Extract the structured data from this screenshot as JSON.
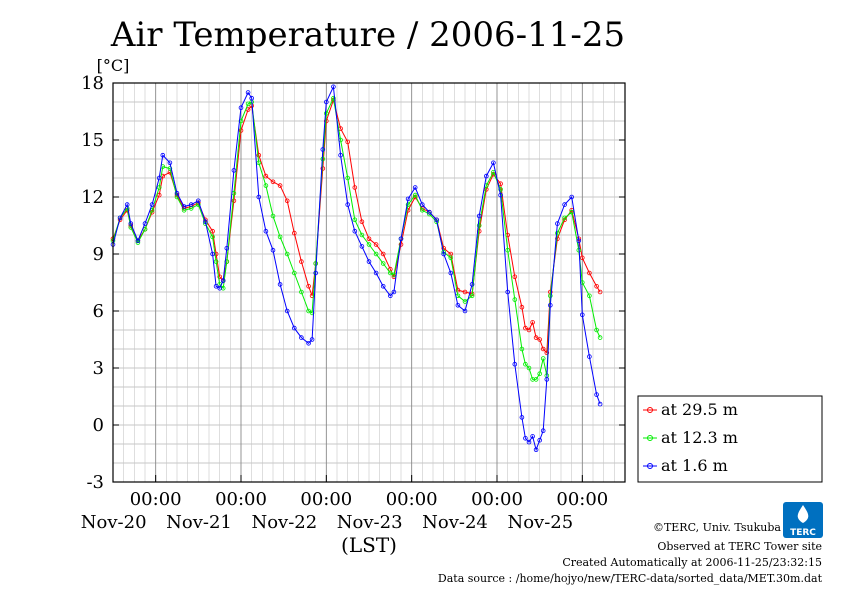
{
  "chart_data": {
    "type": "line",
    "title": "Air Temperature / 2006-11-25",
    "ylabel": "[°C]",
    "xlabel": "(LST)",
    "ylim": [
      -3,
      18
    ],
    "yticks": [
      "-3",
      "0",
      "3",
      "6",
      "9",
      "12",
      "15",
      "18"
    ],
    "xlim_hours": [
      -12,
      132
    ],
    "x_unit": "hours relative to 2006-11-20 00:00 LST",
    "xticks": [
      {
        "hour": 0,
        "time": "00:00",
        "date": "Nov-20"
      },
      {
        "hour": 24,
        "time": "00:00",
        "date": "Nov-21"
      },
      {
        "hour": 48,
        "time": "00:00",
        "date": "Nov-22"
      },
      {
        "hour": 72,
        "time": "00:00",
        "date": "Nov-23"
      },
      {
        "hour": 96,
        "time": "00:00",
        "date": "Nov-24"
      },
      {
        "hour": 120,
        "time": "00:00",
        "date": "Nov-25"
      }
    ],
    "grid": true,
    "legend_position": "right",
    "series": [
      {
        "name": "at 29.5 m",
        "color": "#ff0000",
        "points": [
          [
            -12,
            9.8
          ],
          [
            -10,
            10.8
          ],
          [
            -8,
            11.3
          ],
          [
            -7,
            10.5
          ],
          [
            -5,
            9.7
          ],
          [
            -3,
            10.3
          ],
          [
            -1,
            11.2
          ],
          [
            1,
            12.1
          ],
          [
            2,
            13.1
          ],
          [
            4,
            13.3
          ],
          [
            6,
            12.1
          ],
          [
            8,
            11.4
          ],
          [
            10,
            11.5
          ],
          [
            12,
            11.7
          ],
          [
            14,
            10.8
          ],
          [
            16,
            10.2
          ],
          [
            17,
            9.0
          ],
          [
            18,
            7.8
          ],
          [
            19,
            7.6
          ],
          [
            20,
            8.6
          ],
          [
            22,
            11.8
          ],
          [
            24,
            15.5
          ],
          [
            26,
            16.6
          ],
          [
            27,
            16.8
          ],
          [
            29,
            14.2
          ],
          [
            31,
            13.1
          ],
          [
            33,
            12.8
          ],
          [
            35,
            12.6
          ],
          [
            37,
            11.8
          ],
          [
            39,
            10.1
          ],
          [
            41,
            8.6
          ],
          [
            43,
            7.3
          ],
          [
            44,
            6.8
          ],
          [
            45,
            8.5
          ],
          [
            47,
            13.5
          ],
          [
            48,
            16.0
          ],
          [
            50,
            17.1
          ],
          [
            52,
            15.6
          ],
          [
            54,
            14.9
          ],
          [
            56,
            12.5
          ],
          [
            58,
            10.7
          ],
          [
            60,
            9.8
          ],
          [
            62,
            9.5
          ],
          [
            64,
            9.0
          ],
          [
            66,
            8.2
          ],
          [
            67,
            7.8
          ],
          [
            69,
            9.5
          ],
          [
            71,
            11.3
          ],
          [
            73,
            12.0
          ],
          [
            75,
            11.4
          ],
          [
            77,
            11.2
          ],
          [
            79,
            10.8
          ],
          [
            81,
            9.3
          ],
          [
            83,
            9.0
          ],
          [
            85,
            7.1
          ],
          [
            87,
            7.0
          ],
          [
            89,
            6.9
          ],
          [
            91,
            10.2
          ],
          [
            93,
            12.4
          ],
          [
            95,
            13.2
          ],
          [
            97,
            12.7
          ],
          [
            99,
            10.0
          ],
          [
            101,
            7.8
          ],
          [
            103,
            6.2
          ],
          [
            104,
            5.1
          ],
          [
            105,
            5.0
          ],
          [
            106,
            5.4
          ],
          [
            107,
            4.6
          ],
          [
            108,
            4.5
          ],
          [
            109,
            4.0
          ],
          [
            110,
            3.8
          ],
          [
            111,
            7.0
          ],
          [
            113,
            9.8
          ],
          [
            115,
            10.8
          ],
          [
            117,
            11.3
          ],
          [
            119,
            9.8
          ],
          [
            120,
            8.8
          ],
          [
            122,
            8.0
          ],
          [
            124,
            7.3
          ],
          [
            125,
            7.0
          ]
        ]
      },
      {
        "name": "at 12.3 m",
        "color": "#00ee00",
        "points": [
          [
            -12,
            9.7
          ],
          [
            -10,
            10.9
          ],
          [
            -8,
            11.4
          ],
          [
            -7,
            10.4
          ],
          [
            -5,
            9.6
          ],
          [
            -3,
            10.3
          ],
          [
            -1,
            11.3
          ],
          [
            1,
            12.5
          ],
          [
            2,
            13.6
          ],
          [
            4,
            13.5
          ],
          [
            6,
            12.0
          ],
          [
            8,
            11.3
          ],
          [
            10,
            11.4
          ],
          [
            12,
            11.6
          ],
          [
            14,
            10.6
          ],
          [
            16,
            9.9
          ],
          [
            17,
            8.6
          ],
          [
            18,
            7.4
          ],
          [
            19,
            7.2
          ],
          [
            20,
            8.6
          ],
          [
            22,
            12.2
          ],
          [
            24,
            16.0
          ],
          [
            26,
            16.9
          ],
          [
            27,
            17.0
          ],
          [
            29,
            13.8
          ],
          [
            31,
            12.6
          ],
          [
            33,
            11.0
          ],
          [
            35,
            9.9
          ],
          [
            37,
            9.0
          ],
          [
            39,
            8.0
          ],
          [
            41,
            7.0
          ],
          [
            43,
            6.0
          ],
          [
            44,
            5.9
          ],
          [
            45,
            8.5
          ],
          [
            47,
            14.0
          ],
          [
            48,
            16.4
          ],
          [
            50,
            17.2
          ],
          [
            52,
            15.0
          ],
          [
            54,
            13.0
          ],
          [
            56,
            10.8
          ],
          [
            58,
            10.0
          ],
          [
            60,
            9.5
          ],
          [
            62,
            9.0
          ],
          [
            64,
            8.5
          ],
          [
            66,
            8.0
          ],
          [
            67,
            7.9
          ],
          [
            69,
            9.8
          ],
          [
            71,
            11.6
          ],
          [
            73,
            12.1
          ],
          [
            75,
            11.3
          ],
          [
            77,
            11.1
          ],
          [
            79,
            10.7
          ],
          [
            81,
            9.1
          ],
          [
            83,
            8.8
          ],
          [
            85,
            6.8
          ],
          [
            87,
            6.5
          ],
          [
            89,
            6.8
          ],
          [
            91,
            10.5
          ],
          [
            93,
            12.6
          ],
          [
            95,
            13.3
          ],
          [
            97,
            12.4
          ],
          [
            99,
            9.2
          ],
          [
            101,
            6.6
          ],
          [
            103,
            4.0
          ],
          [
            104,
            3.2
          ],
          [
            105,
            3.0
          ],
          [
            106,
            2.4
          ],
          [
            107,
            2.4
          ],
          [
            108,
            2.7
          ],
          [
            109,
            3.5
          ],
          [
            110,
            2.6
          ],
          [
            111,
            6.8
          ],
          [
            113,
            10.1
          ],
          [
            115,
            10.9
          ],
          [
            117,
            11.2
          ],
          [
            119,
            9.2
          ],
          [
            120,
            7.5
          ],
          [
            122,
            6.8
          ],
          [
            124,
            5.0
          ],
          [
            125,
            4.6
          ]
        ]
      },
      {
        "name": "at 1.6 m",
        "color": "#0000ff",
        "points": [
          [
            -12,
            9.5
          ],
          [
            -10,
            10.9
          ],
          [
            -8,
            11.6
          ],
          [
            -7,
            10.6
          ],
          [
            -5,
            9.7
          ],
          [
            -3,
            10.6
          ],
          [
            -1,
            11.6
          ],
          [
            1,
            13.0
          ],
          [
            2,
            14.2
          ],
          [
            4,
            13.8
          ],
          [
            6,
            12.2
          ],
          [
            8,
            11.5
          ],
          [
            10,
            11.6
          ],
          [
            12,
            11.8
          ],
          [
            14,
            10.7
          ],
          [
            16,
            9.0
          ],
          [
            17,
            7.3
          ],
          [
            18,
            7.2
          ],
          [
            19,
            7.6
          ],
          [
            20,
            9.3
          ],
          [
            22,
            13.4
          ],
          [
            24,
            16.7
          ],
          [
            26,
            17.5
          ],
          [
            27,
            17.2
          ],
          [
            29,
            12.0
          ],
          [
            31,
            10.2
          ],
          [
            33,
            9.2
          ],
          [
            35,
            7.4
          ],
          [
            37,
            6.0
          ],
          [
            39,
            5.1
          ],
          [
            41,
            4.6
          ],
          [
            43,
            4.3
          ],
          [
            44,
            4.5
          ],
          [
            45,
            8.0
          ],
          [
            47,
            14.5
          ],
          [
            48,
            17.0
          ],
          [
            50,
            17.8
          ],
          [
            52,
            14.2
          ],
          [
            54,
            11.6
          ],
          [
            56,
            10.2
          ],
          [
            58,
            9.4
          ],
          [
            60,
            8.6
          ],
          [
            62,
            8.0
          ],
          [
            64,
            7.3
          ],
          [
            66,
            6.8
          ],
          [
            67,
            7.0
          ],
          [
            69,
            9.8
          ],
          [
            71,
            11.9
          ],
          [
            73,
            12.5
          ],
          [
            75,
            11.6
          ],
          [
            77,
            11.2
          ],
          [
            79,
            10.8
          ],
          [
            81,
            9.0
          ],
          [
            83,
            8.0
          ],
          [
            85,
            6.3
          ],
          [
            87,
            6.0
          ],
          [
            89,
            7.4
          ],
          [
            91,
            11.0
          ],
          [
            93,
            13.1
          ],
          [
            95,
            13.8
          ],
          [
            97,
            12.1
          ],
          [
            99,
            7.0
          ],
          [
            101,
            3.2
          ],
          [
            103,
            0.4
          ],
          [
            104,
            -0.7
          ],
          [
            105,
            -0.9
          ],
          [
            106,
            -0.6
          ],
          [
            107,
            -1.3
          ],
          [
            108,
            -0.8
          ],
          [
            109,
            -0.3
          ],
          [
            110,
            2.4
          ],
          [
            111,
            6.3
          ],
          [
            113,
            10.6
          ],
          [
            115,
            11.6
          ],
          [
            117,
            12.0
          ],
          [
            119,
            9.7
          ],
          [
            120,
            5.8
          ],
          [
            122,
            3.6
          ],
          [
            124,
            1.6
          ],
          [
            125,
            1.1
          ]
        ]
      }
    ]
  },
  "footer": {
    "copyright": "©TERC, Univ. Tsukuba",
    "observed": "Observed at TERC Tower site",
    "created": "Created Automatically at 2006-11-25/23:32:15",
    "source": "Data source : /home/hojyo/new/TERC-data/sorted_data/MET.30m.dat"
  },
  "logo": {
    "text": "TERC",
    "color": "#0070c0"
  }
}
